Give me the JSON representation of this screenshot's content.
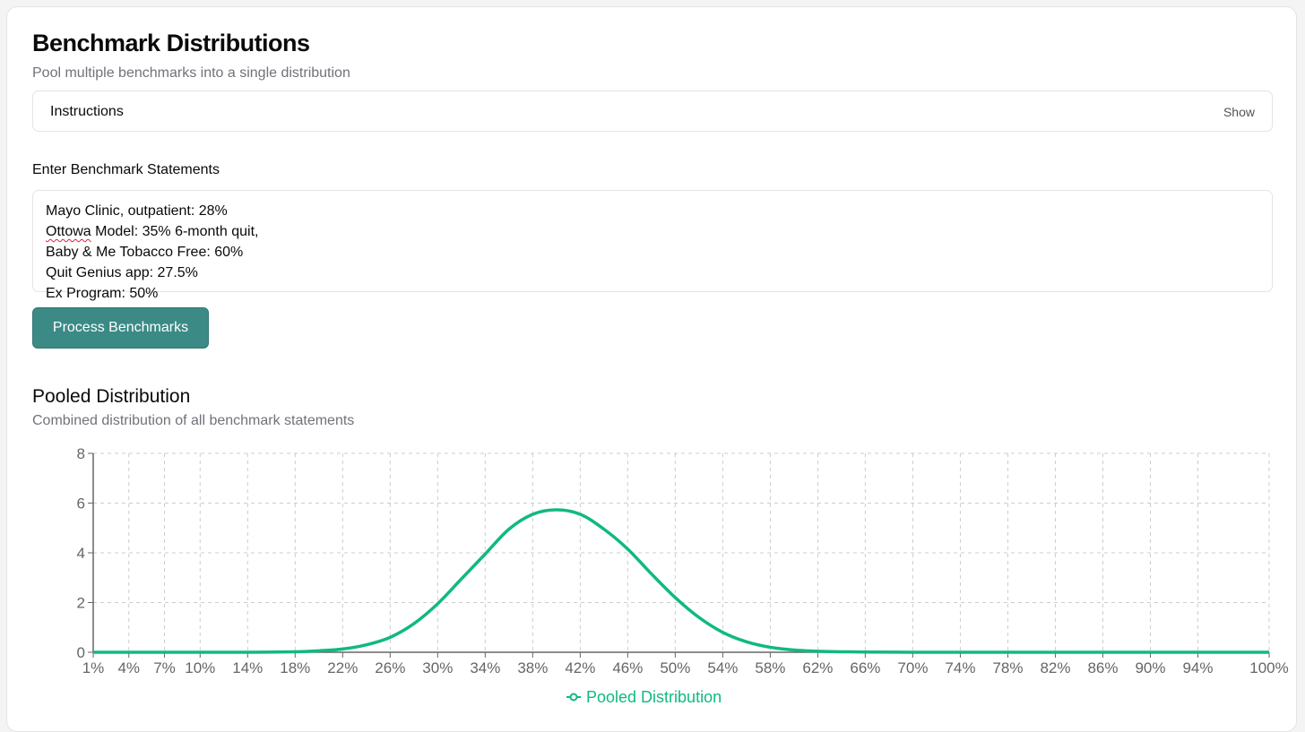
{
  "header": {
    "title": "Benchmark Distributions",
    "subtitle": "Pool multiple benchmarks into a single distribution"
  },
  "instructions": {
    "label": "Instructions",
    "toggle_label": "Show"
  },
  "input": {
    "label": "Enter Benchmark Statements",
    "lines": [
      "Mayo Clinic, outpatient: 28%",
      "Ottowa Model: 35% 6-month quit,",
      "Baby & Me Tobacco Free: 60%",
      "Quit Genius app: 27.5%",
      "Ex Program: 50%"
    ],
    "misspelled_word": "Ottowa"
  },
  "actions": {
    "process_label": "Process Benchmarks"
  },
  "results": {
    "title": "Pooled Distribution",
    "subtitle": "Combined distribution of all benchmark statements"
  },
  "colors": {
    "accent": "#3b8a86",
    "series": "#10b981"
  },
  "chart_data": {
    "type": "line",
    "x_ticks": [
      "1%",
      "4%",
      "7%",
      "10%",
      "14%",
      "18%",
      "22%",
      "26%",
      "30%",
      "34%",
      "38%",
      "42%",
      "46%",
      "50%",
      "54%",
      "58%",
      "62%",
      "66%",
      "70%",
      "74%",
      "78%",
      "82%",
      "86%",
      "90%",
      "94%",
      "100%"
    ],
    "y_ticks": [
      "0",
      "2",
      "4",
      "6",
      "8"
    ],
    "ylim": [
      0,
      8
    ],
    "xlim": [
      1,
      100
    ],
    "grid": true,
    "legend_position": "bottom",
    "series": [
      {
        "name": "Pooled Distribution",
        "x": [
          1,
          4,
          7,
          10,
          14,
          18,
          20,
          22,
          24,
          26,
          28,
          30,
          32,
          34,
          36,
          38,
          40,
          42,
          44,
          46,
          48,
          50,
          52,
          54,
          56,
          58,
          60,
          62,
          64,
          66,
          70,
          74,
          78,
          82,
          86,
          90,
          94,
          100
        ],
        "y": [
          0,
          0,
          0,
          0,
          0,
          0.02,
          0.06,
          0.13,
          0.3,
          0.6,
          1.15,
          1.95,
          2.95,
          3.95,
          4.95,
          5.55,
          5.73,
          5.55,
          4.95,
          4.15,
          3.15,
          2.2,
          1.4,
          0.8,
          0.42,
          0.2,
          0.09,
          0.04,
          0.02,
          0.01,
          0,
          0,
          0,
          0,
          0,
          0,
          0,
          0
        ]
      }
    ]
  }
}
